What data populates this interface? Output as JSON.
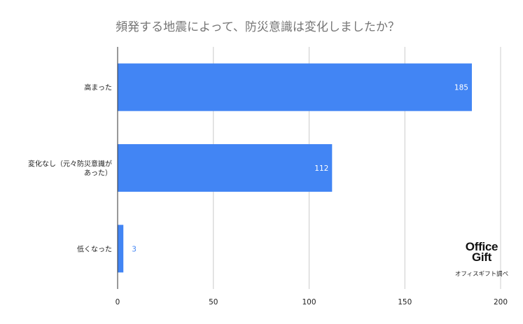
{
  "chart_data": {
    "type": "bar",
    "orientation": "horizontal",
    "title": "頻発する地震によって、防災意識は変化しましたか？",
    "categories": [
      [
        "高まった"
      ],
      [
        "変化なし（元々防災意識が",
        "あった）"
      ],
      [
        "低くなった"
      ]
    ],
    "values": [
      185,
      112,
      3
    ],
    "xlim": [
      0,
      200
    ],
    "xticks": [
      "0",
      "50",
      "100",
      "150",
      "200"
    ],
    "grid": true,
    "bar_color": "#4285f4"
  },
  "branding": {
    "logo_line1": "Office",
    "logo_line2": "Gift",
    "source": "オフィスギフト調べ"
  }
}
